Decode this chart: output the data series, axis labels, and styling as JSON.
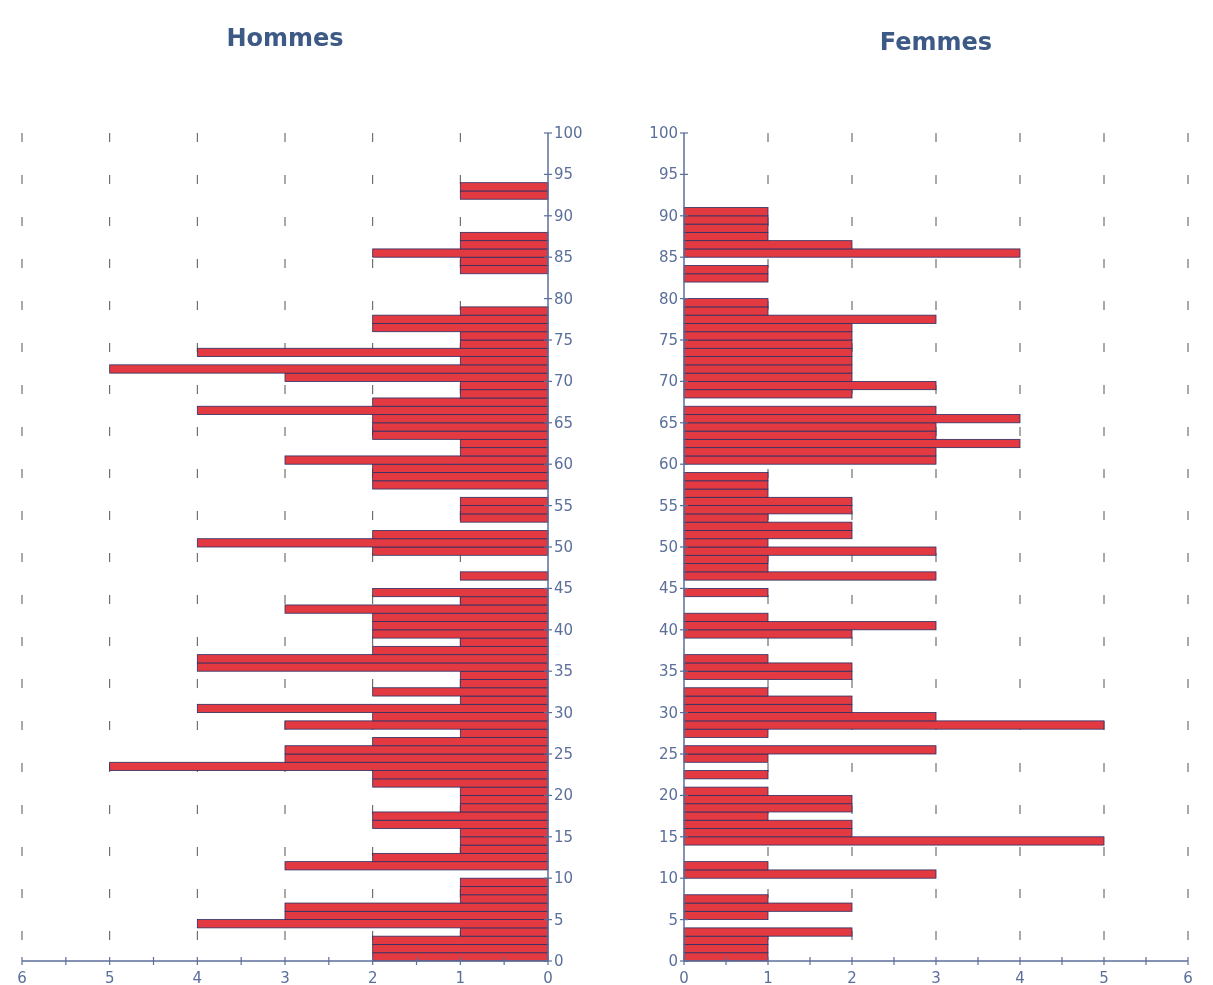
{
  "chart_data": [
    {
      "type": "bar",
      "orientation": "horizontal",
      "title": "Hommes",
      "color": "#e23a40",
      "grid": "x",
      "x": [
        0,
        1,
        2,
        3,
        4,
        5,
        6,
        7,
        8,
        9,
        11,
        12,
        13,
        14,
        15,
        16,
        17,
        18,
        19,
        20,
        21,
        22,
        23,
        24,
        25,
        26,
        27,
        28,
        29,
        30,
        31,
        32,
        33,
        34,
        35,
        36,
        37,
        38,
        39,
        40,
        41,
        42,
        43,
        44,
        46,
        49,
        50,
        51,
        53,
        54,
        55,
        57,
        58,
        59,
        60,
        61,
        62,
        63,
        64,
        65,
        66,
        67,
        68,
        69,
        70,
        71,
        72,
        73,
        74,
        75,
        76,
        77,
        78,
        83,
        84,
        85,
        86,
        87,
        92,
        93
      ],
      "values": [
        2,
        2,
        2,
        1,
        4,
        3,
        3,
        1,
        1,
        1,
        3,
        2,
        1,
        1,
        1,
        2,
        2,
        1,
        1,
        1,
        2,
        2,
        5,
        3,
        3,
        2,
        1,
        3,
        2,
        4,
        1,
        2,
        1,
        1,
        4,
        4,
        2,
        1,
        2,
        2,
        2,
        3,
        1,
        2,
        1,
        2,
        4,
        2,
        1,
        1,
        1,
        2,
        2,
        2,
        3,
        1,
        1,
        2,
        2,
        2,
        4,
        2,
        1,
        1,
        3,
        5,
        1,
        4,
        1,
        1,
        2,
        2,
        1,
        1,
        1,
        2,
        1,
        1,
        1,
        1
      ],
      "xlim": [
        6,
        0
      ],
      "xticks": [
        6,
        {
          "value": 5.5,
          "label": null
        },
        5,
        {
          "value": 4.5,
          "label": null
        },
        4,
        {
          "value": 3.5,
          "label": null
        },
        3,
        {
          "value": 2.5,
          "label": null
        },
        2,
        {
          "value": 1.5,
          "label": null
        },
        1,
        {
          "value": 0.5,
          "label": null
        },
        0
      ],
      "ylim": [
        0,
        100
      ],
      "yticks": [
        0,
        5,
        10,
        15,
        20,
        25,
        30,
        35,
        40,
        45,
        50,
        55,
        60,
        65,
        70,
        75,
        80,
        85,
        90,
        95,
        100
      ]
    },
    {
      "type": "bar",
      "orientation": "horizontal",
      "title": "Femmes",
      "color": "#e23a40",
      "grid": "x",
      "x": [
        0,
        1,
        2,
        3,
        5,
        6,
        7,
        10,
        11,
        14,
        15,
        16,
        17,
        18,
        19,
        20,
        22,
        24,
        25,
        27,
        28,
        29,
        30,
        31,
        32,
        34,
        35,
        36,
        39,
        40,
        41,
        44,
        46,
        47,
        48,
        49,
        50,
        51,
        52,
        53,
        54,
        55,
        56,
        57,
        58,
        60,
        61,
        62,
        63,
        64,
        65,
        66,
        68,
        69,
        70,
        71,
        72,
        73,
        74,
        75,
        76,
        77,
        78,
        79,
        82,
        83,
        85,
        86,
        87,
        88,
        89,
        90
      ],
      "values": [
        1,
        1,
        1,
        2,
        1,
        2,
        1,
        3,
        1,
        5,
        2,
        2,
        1,
        2,
        2,
        1,
        1,
        1,
        3,
        1,
        5,
        3,
        2,
        2,
        1,
        2,
        2,
        1,
        2,
        3,
        1,
        1,
        3,
        1,
        1,
        3,
        1,
        2,
        2,
        1,
        2,
        2,
        1,
        1,
        1,
        3,
        3,
        4,
        3,
        3,
        4,
        3,
        2,
        3,
        2,
        2,
        2,
        2,
        2,
        2,
        2,
        3,
        1,
        1,
        1,
        1,
        4,
        2,
        1,
        1,
        1,
        1
      ],
      "xlim": [
        0,
        6
      ],
      "xticks": [
        0,
        {
          "value": 0.5,
          "label": null
        },
        1,
        {
          "value": 1.5,
          "label": null
        },
        2,
        {
          "value": 2.5,
          "label": null
        },
        3,
        {
          "value": 3.5,
          "label": null
        },
        4,
        {
          "value": 4.5,
          "label": null
        },
        5,
        {
          "value": 5.5,
          "label": null
        },
        6
      ],
      "ylim": [
        0,
        100
      ],
      "yticks": [
        0,
        5,
        10,
        15,
        20,
        25,
        30,
        35,
        40,
        45,
        50,
        55,
        60,
        65,
        70,
        75,
        80,
        85,
        90,
        95,
        100
      ]
    }
  ]
}
